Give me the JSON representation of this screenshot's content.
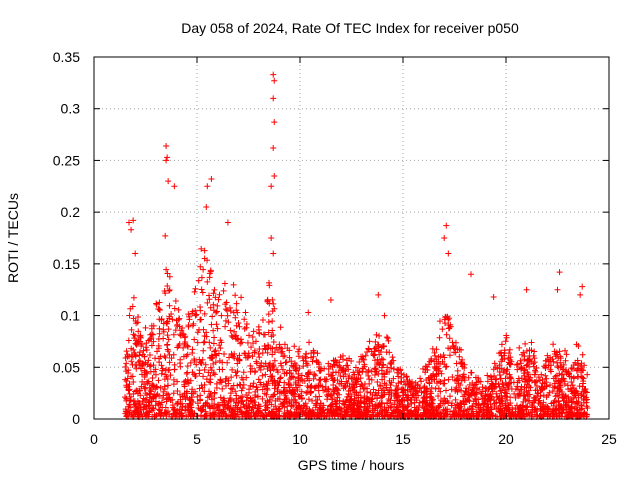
{
  "chart_data": {
    "type": "scatter",
    "title": "Day 058 of 2024, Rate Of TEC Index for receiver p050",
    "xlabel": "GPS time / hours",
    "ylabel": "ROTI / TECUs",
    "xlim": [
      0,
      25
    ],
    "ylim": [
      0,
      0.35
    ],
    "x_ticks": [
      0,
      5,
      10,
      15,
      20,
      25
    ],
    "x_tick_labels": [
      "0",
      "5",
      "10",
      "15",
      "20",
      "25"
    ],
    "y_ticks": [
      0,
      0.05,
      0.1,
      0.15,
      0.2,
      0.25,
      0.3,
      0.35
    ],
    "y_tick_labels": [
      "0",
      "0.05",
      "0.1",
      "0.15",
      "0.2",
      "0.25",
      "0.3",
      "0.35"
    ],
    "grid": true,
    "marker": "+",
    "color": "#ff0000",
    "data_range_hours": [
      1.5,
      24.0
    ],
    "notable_points": [
      {
        "x": 1.7,
        "y": 0.19
      },
      {
        "x": 1.8,
        "y": 0.183
      },
      {
        "x": 1.9,
        "y": 0.192
      },
      {
        "x": 2.0,
        "y": 0.16
      },
      {
        "x": 3.5,
        "y": 0.264
      },
      {
        "x": 3.55,
        "y": 0.253
      },
      {
        "x": 3.5,
        "y": 0.25
      },
      {
        "x": 3.6,
        "y": 0.23
      },
      {
        "x": 3.9,
        "y": 0.225
      },
      {
        "x": 5.5,
        "y": 0.225
      },
      {
        "x": 5.7,
        "y": 0.232
      },
      {
        "x": 5.45,
        "y": 0.205
      },
      {
        "x": 6.5,
        "y": 0.19
      },
      {
        "x": 8.7,
        "y": 0.333
      },
      {
        "x": 8.75,
        "y": 0.327
      },
      {
        "x": 8.7,
        "y": 0.31
      },
      {
        "x": 8.75,
        "y": 0.287
      },
      {
        "x": 8.7,
        "y": 0.262
      },
      {
        "x": 8.75,
        "y": 0.235
      },
      {
        "x": 8.6,
        "y": 0.225
      },
      {
        "x": 8.6,
        "y": 0.175
      },
      {
        "x": 8.7,
        "y": 0.16
      },
      {
        "x": 10.4,
        "y": 0.103
      },
      {
        "x": 11.5,
        "y": 0.115
      },
      {
        "x": 13.8,
        "y": 0.12
      },
      {
        "x": 14.1,
        "y": 0.1
      },
      {
        "x": 17.1,
        "y": 0.187
      },
      {
        "x": 17.0,
        "y": 0.175
      },
      {
        "x": 17.2,
        "y": 0.16
      },
      {
        "x": 18.3,
        "y": 0.14
      },
      {
        "x": 19.4,
        "y": 0.118
      },
      {
        "x": 21.0,
        "y": 0.125
      },
      {
        "x": 22.6,
        "y": 0.142
      },
      {
        "x": 22.5,
        "y": 0.125
      },
      {
        "x": 23.7,
        "y": 0.128
      },
      {
        "x": 23.6,
        "y": 0.12
      }
    ],
    "envelope": {
      "x": [
        1.5,
        1.7,
        1.9,
        2.2,
        2.6,
        3.0,
        3.3,
        3.5,
        3.7,
        4.0,
        4.3,
        4.7,
        5.0,
        5.3,
        5.6,
        5.9,
        6.2,
        6.6,
        7.0,
        7.4,
        7.8,
        8.2,
        8.5,
        8.8,
        9.1,
        9.5,
        9.9,
        10.3,
        10.7,
        11.1,
        11.5,
        11.9,
        12.3,
        12.8,
        13.3,
        13.8,
        14.2,
        14.6,
        15.0,
        15.5,
        16.0,
        16.5,
        16.9,
        17.2,
        17.6,
        18.0,
        18.4,
        18.8,
        19.2,
        19.6,
        20.0,
        20.4,
        20.8,
        21.2,
        21.6,
        22.0,
        22.4,
        22.8,
        23.2,
        23.6,
        24.0
      ],
      "y": [
        0.05,
        0.1,
        0.12,
        0.08,
        0.07,
        0.1,
        0.13,
        0.16,
        0.12,
        0.11,
        0.09,
        0.1,
        0.13,
        0.15,
        0.14,
        0.12,
        0.11,
        0.12,
        0.11,
        0.09,
        0.08,
        0.08,
        0.12,
        0.1,
        0.07,
        0.06,
        0.06,
        0.07,
        0.06,
        0.05,
        0.06,
        0.06,
        0.05,
        0.05,
        0.06,
        0.08,
        0.07,
        0.05,
        0.04,
        0.035,
        0.05,
        0.06,
        0.09,
        0.1,
        0.07,
        0.05,
        0.04,
        0.03,
        0.04,
        0.06,
        0.07,
        0.05,
        0.06,
        0.07,
        0.05,
        0.06,
        0.07,
        0.06,
        0.05,
        0.07,
        0.04
      ]
    }
  }
}
